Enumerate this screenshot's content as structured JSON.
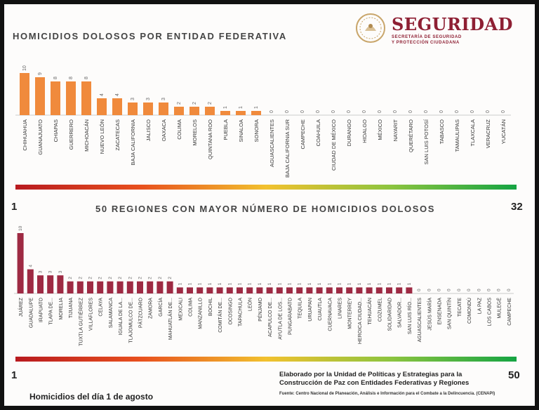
{
  "header": {
    "title1": "HOMICIDIOS DOLOSOS POR ENTIDAD FEDERATIVA",
    "title2": "50 REGIONES CON MAYOR NÚMERO DE HOMICIDIOS DOLOSOS"
  },
  "logo": {
    "org_name": "SEGURIDAD",
    "org_sub1": "SECRETARÍA DE SEGURIDAD",
    "org_sub2": "Y PROTECCIÓN CIUDADANA"
  },
  "scale1": {
    "min_label": "1",
    "max_label": "32"
  },
  "scale2": {
    "min_label": "1",
    "max_label": "50"
  },
  "footer": {
    "credit_line1": "Elaborado por la Unidad de Políticas y Estrategias para la",
    "credit_line2": "Construcción de Paz con Entidades Federativas y Regiones",
    "source": "Fuente: Centro Nacional de Planeación, Análisis e Información para el Combate a la Delincuencia. (CENAPI)",
    "date_label": "Homicidios del día 1 de agosto"
  },
  "colors": {
    "states": "#f08a3c",
    "regions": "#9e2a43"
  },
  "chart_data": [
    {
      "type": "bar",
      "categories": [
        "CHIHUAHUA",
        "GUANAJUATO",
        "CHIAPAS",
        "GUERRERO",
        "MICHOACÁN",
        "NUEVO LEÓN",
        "ZACATECAS",
        "BAJA CALIFORNIA",
        "JALISCO",
        "OAXACA",
        "COLIMA",
        "MORELOS",
        "QUINTANA ROO",
        "PUEBLA",
        "SINALOA",
        "SONORA",
        "AGUASCALIENTES",
        "BAJA CALIFORNIA SUR",
        "CAMPECHE",
        "COAHUILA",
        "CIUDAD DE MÉXICO",
        "DURANGO",
        "HIDALGO",
        "MÉXICO",
        "NAYARIT",
        "QUERÉTARO",
        "SAN LUIS POTOSÍ",
        "TABASCO",
        "TAMAULIPAS",
        "TLAXCALA",
        "VERACRUZ",
        "YUCATÁN"
      ],
      "values": [
        10,
        9,
        8,
        8,
        8,
        4,
        4,
        3,
        3,
        3,
        2,
        2,
        2,
        1,
        1,
        1,
        0,
        0,
        0,
        0,
        0,
        0,
        0,
        0,
        0,
        0,
        0,
        0,
        0,
        0,
        0,
        0
      ],
      "title": "HOMICIDIOS DOLOSOS POR ENTIDAD FEDERATIVA",
      "ylim": [
        0,
        10
      ],
      "grid": false
    },
    {
      "type": "bar",
      "categories": [
        "JUÁREZ",
        "GUADALUPE",
        "IRAPUATO",
        "TLAPA DE...",
        "MORELIA",
        "TIJUANA",
        "TUXTLA GUTIÉRREZ",
        "VILLAFLORES",
        "CELAYA",
        "SALAMANCA",
        "IGUALA DE LA...",
        "TLAJOMULCO DE...",
        "PÁTZCUARO",
        "ZAMORA",
        "GARCÍA",
        "MAHUATLÁN DE...",
        "MEXICALI",
        "COLIMA",
        "MANZANILLO",
        "BOCHIL",
        "COMITÁN DE...",
        "OCOSINGO",
        "TAPACHULA",
        "LEÓN",
        "PÉNJAMO",
        "ACAPULCO DE...",
        "AYUTLA DE LOS...",
        "PUNGARABATO",
        "TEQUILA",
        "URUAPAN",
        "CUAUTLA",
        "CUERNAVACA",
        "LINARES",
        "MONTERREY",
        "HEROICA CIUDAD...",
        "TEHUACÁN",
        "COZUMEL",
        "SOLIDARIDAD",
        "SALVADOR...",
        "SAN LUIS RÍO...",
        "AGUASCALIENTES",
        "JESÚS MARÍA",
        "ENSENADA",
        "SAN QUINTÍN",
        "TECATE",
        "COMONDÚ",
        "LA PAZ",
        "LOS CABOS",
        "MULEGÉ",
        "CAMPECHE"
      ],
      "values": [
        10,
        4,
        3,
        3,
        3,
        2,
        2,
        2,
        2,
        2,
        2,
        2,
        2,
        2,
        2,
        2,
        1,
        1,
        1,
        1,
        1,
        1,
        1,
        1,
        1,
        1,
        1,
        1,
        1,
        1,
        1,
        1,
        1,
        1,
        1,
        1,
        1,
        1,
        1,
        1,
        0,
        0,
        0,
        0,
        0,
        0,
        0,
        0,
        0,
        0
      ],
      "title": "50 REGIONES CON MAYOR NÚMERO DE HOMICIDIOS DOLOSOS",
      "ylim": [
        0,
        10
      ],
      "grid": false
    }
  ]
}
